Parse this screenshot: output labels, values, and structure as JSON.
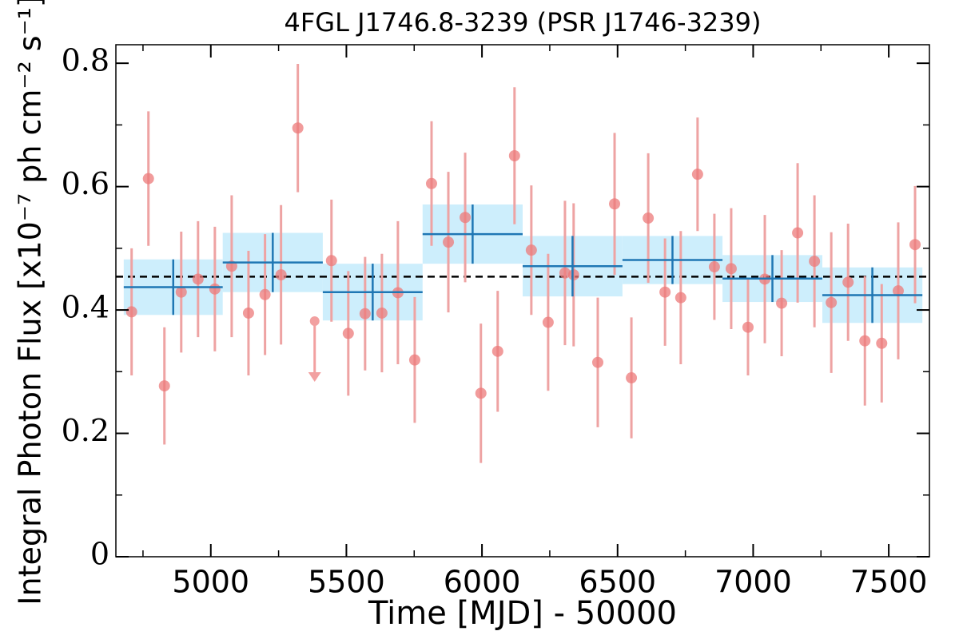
{
  "chart_data": {
    "type": "scatter",
    "title": "4FGL J1746.8-3239 (PSR J1746-3239)",
    "x_label": "Time [MJD] - 50000",
    "y_label": "Integral Photon Flux [x10⁻⁷ ph cm⁻² s⁻¹]",
    "xlim": [
      4650,
      7650
    ],
    "ylim": [
      0,
      0.83
    ],
    "xticks": [
      5000,
      5500,
      6000,
      6500,
      7000,
      7500
    ],
    "yticks": [
      0,
      0.2,
      0.4,
      0.6,
      0.8
    ],
    "x_minor_ticks": [
      4750,
      5250,
      5750,
      6250,
      6750,
      7250
    ],
    "y_minor_ticks": [
      0.1,
      0.3,
      0.5,
      0.7
    ],
    "points": {
      "color": "#ec7a7a",
      "error_color": "#eea3a3",
      "x": [
        4708,
        4770,
        4829,
        4891,
        4953,
        5015,
        5077,
        5139,
        5200,
        5259,
        5321,
        5445,
        5507,
        5569,
        5631,
        5690,
        5752,
        5814,
        5876,
        5938,
        5996,
        6058,
        6120,
        6182,
        6244,
        6306,
        6338,
        6427,
        6489,
        6551,
        6613,
        6675,
        6733,
        6795,
        6857,
        6919,
        6981,
        7043,
        7105,
        7164,
        7226,
        7288,
        7350,
        7412,
        7474,
        7535,
        7597
      ],
      "values": [
        0.397,
        0.613,
        0.277,
        0.429,
        0.45,
        0.434,
        0.471,
        0.395,
        0.425,
        0.457,
        0.695,
        0.48,
        0.362,
        0.394,
        0.395,
        0.428,
        0.319,
        0.605,
        0.51,
        0.55,
        0.265,
        0.333,
        0.65,
        0.497,
        0.38,
        0.46,
        0.457,
        0.315,
        0.572,
        0.29,
        0.549,
        0.429,
        0.42,
        0.62,
        0.47,
        0.467,
        0.372,
        0.45,
        0.411,
        0.525,
        0.479,
        0.412,
        0.445,
        0.35,
        0.346,
        0.431,
        0.506
      ],
      "errors": [
        0.103,
        0.109,
        0.095,
        0.098,
        0.094,
        0.101,
        0.115,
        0.101,
        0.098,
        0.113,
        0.104,
        0.099,
        0.101,
        0.092,
        0.096,
        0.116,
        0.102,
        0.101,
        0.114,
        0.105,
        0.113,
        0.098,
        0.111,
        0.105,
        0.111,
        0.117,
        0.116,
        0.105,
        0.115,
        0.098,
        0.105,
        0.087,
        0.108,
        0.092,
        0.086,
        0.098,
        0.078,
        0.104,
        0.086,
        0.113,
        0.107,
        0.114,
        0.095,
        0.105,
        0.096,
        0.111,
        0.095
      ]
    },
    "upper_limits": {
      "color": "#f2a0a0",
      "x": [
        5383
      ],
      "values": [
        0.382
      ]
    },
    "bins": {
      "color": "#1f77b4",
      "fill": "#cdeefc",
      "edges": [
        4679,
        5044,
        5413,
        5781,
        6150,
        6518,
        6887,
        7255,
        7624
      ],
      "values": [
        0.437,
        0.477,
        0.429,
        0.523,
        0.471,
        0.481,
        0.451,
        0.424
      ],
      "errors": [
        0.045,
        0.048,
        0.046,
        0.048,
        0.049,
        0.039,
        0.038,
        0.045
      ]
    },
    "mean": 0.454
  }
}
